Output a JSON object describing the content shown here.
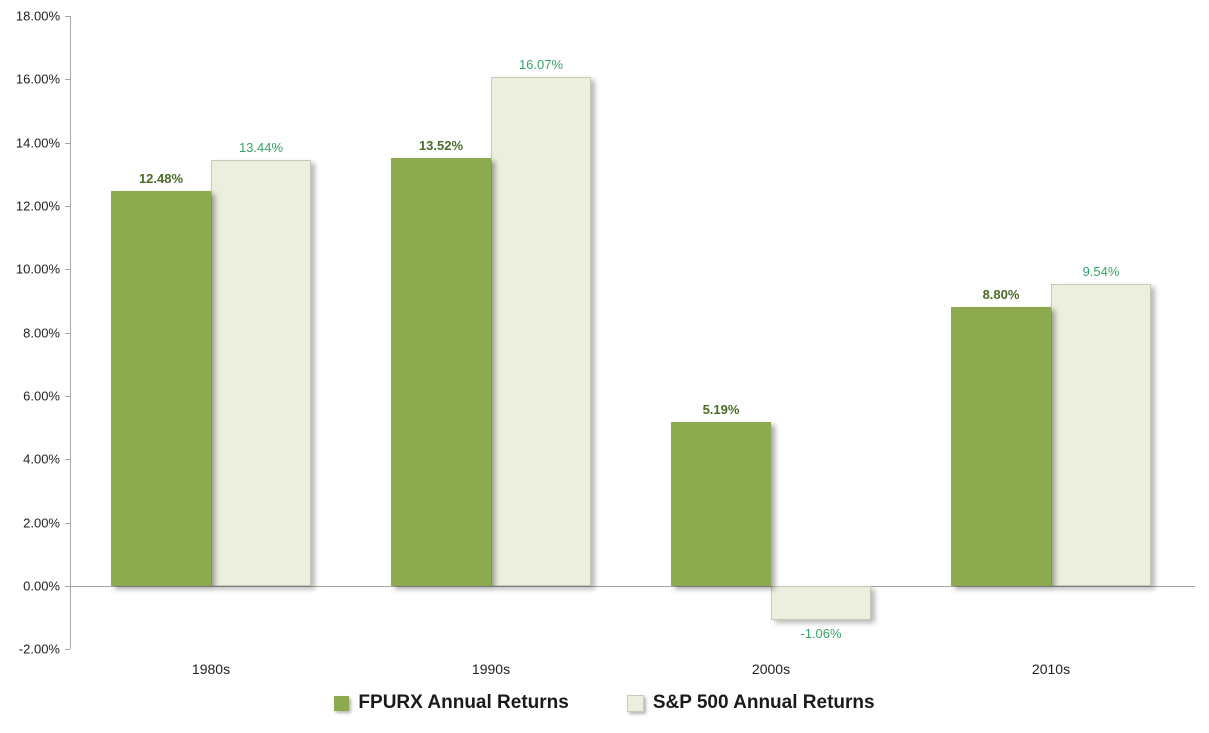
{
  "chart_data": {
    "type": "bar",
    "categories": [
      "1980s",
      "1990s",
      "2000s",
      "2010s"
    ],
    "series": [
      {
        "name": "FPURX Annual Returns",
        "values": [
          12.48,
          13.52,
          5.19,
          8.8
        ],
        "labels": [
          "12.48%",
          "13.52%",
          "5.19%",
          "8.80%"
        ],
        "color": "#8DAA4F",
        "label_color": "#4C6B27"
      },
      {
        "name": "S&P 500 Annual Returns",
        "values": [
          13.44,
          16.07,
          -1.06,
          9.54
        ],
        "labels": [
          "13.44%",
          "16.07%",
          "-1.06%",
          "9.54%"
        ],
        "color": "#ECEFDE",
        "label_color": "#35A566"
      }
    ],
    "title": "",
    "xlabel": "",
    "ylabel": "",
    "ylim": [
      -2,
      18
    ],
    "ytick_step": 2,
    "ytick_labels": [
      "18.00%",
      "16.00%",
      "14.00%",
      "12.00%",
      "10.00%",
      "8.00%",
      "6.00%",
      "4.00%",
      "2.00%",
      "0.00%",
      "-2.00%"
    ],
    "grid": false,
    "legend_position": "bottom",
    "axis_color": "#a6a6a6",
    "background_color": "#ffffff"
  }
}
